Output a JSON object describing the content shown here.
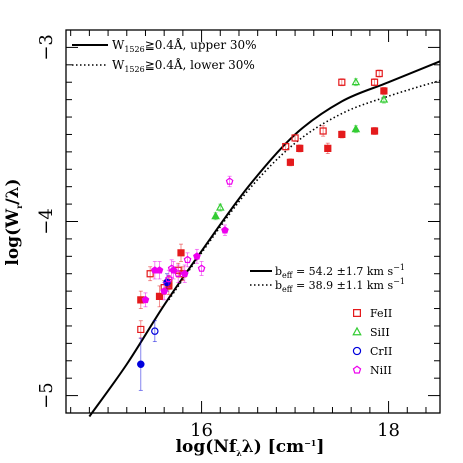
{
  "chart_data": {
    "type": "scatter",
    "title": "",
    "xlabel_main": "log(Nf",
    "xlabel_sub": "λ",
    "xlabel_tail": "λ) [cm",
    "xlabel_sup": "−1",
    "xlabel_end": "]",
    "ylabel_main": "log(W",
    "ylabel_sub": "r",
    "ylabel_tail": "/λ)",
    "xlim": [
      14.55,
      18.55
    ],
    "ylim": [
      -5.1,
      -2.9
    ],
    "x_ticks": [
      {
        "value": 16,
        "label": "16"
      },
      {
        "value": 18,
        "label": "18"
      }
    ],
    "y_ticks": [
      {
        "value": -3,
        "label": "−3"
      },
      {
        "value": -4,
        "label": "−4"
      },
      {
        "value": -5,
        "label": "−5"
      }
    ],
    "curve_legend": [
      {
        "style": "solid",
        "prefix": "W",
        "sub": "1526",
        "text": "≧0.4Å, upper 30%"
      },
      {
        "style": "dotted",
        "prefix": "W",
        "sub": "1526",
        "text": "≧0.4Å, lower 30%"
      }
    ],
    "beff_legend": [
      {
        "style": "solid",
        "label": "b",
        "sub": "eff",
        "text": " = 54.2  ±1.7 km s",
        "sup": "−1"
      },
      {
        "style": "dotted",
        "label": "b",
        "sub": "eff",
        "text": " = 38.9  ±1.1 km s",
        "sup": "−1"
      }
    ],
    "curves": [
      {
        "style": "solid",
        "points": [
          [
            14.8,
            -5.12
          ],
          [
            15.2,
            -4.82
          ],
          [
            15.6,
            -4.48
          ],
          [
            16.0,
            -4.17
          ],
          [
            16.5,
            -3.8
          ],
          [
            17.0,
            -3.5
          ],
          [
            17.5,
            -3.31
          ],
          [
            18.0,
            -3.2
          ],
          [
            18.55,
            -3.08
          ]
        ]
      },
      {
        "style": "dotted",
        "points": [
          [
            15.65,
            -4.45
          ],
          [
            16.0,
            -4.18
          ],
          [
            16.5,
            -3.82
          ],
          [
            17.0,
            -3.55
          ],
          [
            17.5,
            -3.38
          ],
          [
            18.0,
            -3.28
          ],
          [
            18.55,
            -3.19
          ]
        ]
      }
    ],
    "ion_legend": [
      {
        "name": "FeII",
        "color": "#e41a1c",
        "marker": "square-open"
      },
      {
        "name": "SiII",
        "color": "#33cc33",
        "marker": "triangle-open"
      },
      {
        "name": "CrII",
        "color": "#0000dd",
        "marker": "circle-open"
      },
      {
        "name": "NiII",
        "color": "#ee00ee",
        "marker": "pentagon-open"
      }
    ],
    "series": [
      {
        "ion": "FeII",
        "filled": false,
        "color": "#e41a1c",
        "marker": "square",
        "points": [
          [
            15.35,
            -4.62,
            0.05
          ],
          [
            15.45,
            -4.3,
            0.04
          ],
          [
            15.6,
            -4.38,
            0.04
          ],
          [
            15.65,
            -4.35,
            0.04
          ],
          [
            15.75,
            -4.28,
            0.04
          ],
          [
            15.8,
            -4.3,
            0.04
          ],
          [
            16.9,
            -3.57,
            0.02
          ],
          [
            17.0,
            -3.52,
            0.02
          ],
          [
            17.3,
            -3.48,
            0.03
          ],
          [
            17.5,
            -3.2,
            0.02
          ],
          [
            17.85,
            -3.2,
            0.02
          ],
          [
            17.9,
            -3.15,
            0.02
          ]
        ]
      },
      {
        "ion": "FeII",
        "filled": true,
        "color": "#e41a1c",
        "marker": "square",
        "points": [
          [
            15.35,
            -4.45,
            0.05
          ],
          [
            15.55,
            -4.43,
            0.06
          ],
          [
            15.65,
            -4.37,
            0.05
          ],
          [
            15.78,
            -4.18,
            0.05
          ],
          [
            16.95,
            -3.66,
            0.02
          ],
          [
            17.05,
            -3.58,
            0.02
          ],
          [
            17.35,
            -3.58,
            0.03
          ],
          [
            17.5,
            -3.5,
            0.02
          ],
          [
            17.85,
            -3.48,
            0.02
          ],
          [
            17.95,
            -3.25,
            0.02
          ]
        ]
      },
      {
        "ion": "SiII",
        "filled": false,
        "color": "#33cc33",
        "marker": "triangle",
        "points": [
          [
            16.2,
            -3.92,
            0.02
          ],
          [
            17.65,
            -3.2,
            0.02
          ],
          [
            17.95,
            -3.3,
            0.02
          ]
        ]
      },
      {
        "ion": "SiII",
        "filled": true,
        "color": "#33cc33",
        "marker": "triangle",
        "points": [
          [
            16.15,
            -3.97,
            0.02
          ],
          [
            17.65,
            -3.47,
            0.02
          ]
        ]
      },
      {
        "ion": "CrII",
        "filled": false,
        "color": "#0000dd",
        "marker": "circle",
        "points": [
          [
            15.5,
            -4.63,
            0.06
          ]
        ]
      },
      {
        "ion": "CrII",
        "filled": true,
        "color": "#0000dd",
        "marker": "circle",
        "points": [
          [
            15.35,
            -4.82,
            0.15
          ],
          [
            15.63,
            -4.35,
            0.05
          ]
        ]
      },
      {
        "ion": "NiII",
        "filled": false,
        "color": "#ee00ee",
        "marker": "pentagon",
        "points": [
          [
            16.3,
            -3.77,
            0.03
          ],
          [
            15.85,
            -4.22,
            0.04
          ],
          [
            16.0,
            -4.27,
            0.04
          ],
          [
            15.75,
            -4.3,
            0.05
          ],
          [
            15.65,
            -4.33,
            0.05
          ],
          [
            15.68,
            -4.27,
            0.05
          ]
        ]
      },
      {
        "ion": "NiII",
        "filled": true,
        "color": "#ee00ee",
        "marker": "pentagon",
        "points": [
          [
            15.4,
            -4.45,
            0.04
          ],
          [
            15.5,
            -4.28,
            0.05
          ],
          [
            15.55,
            -4.28,
            0.05
          ],
          [
            15.6,
            -4.4,
            0.05
          ],
          [
            15.7,
            -4.28,
            0.05
          ],
          [
            15.82,
            -4.3,
            0.05
          ],
          [
            15.95,
            -4.2,
            0.04
          ],
          [
            16.25,
            -4.05,
            0.03
          ]
        ]
      }
    ]
  }
}
